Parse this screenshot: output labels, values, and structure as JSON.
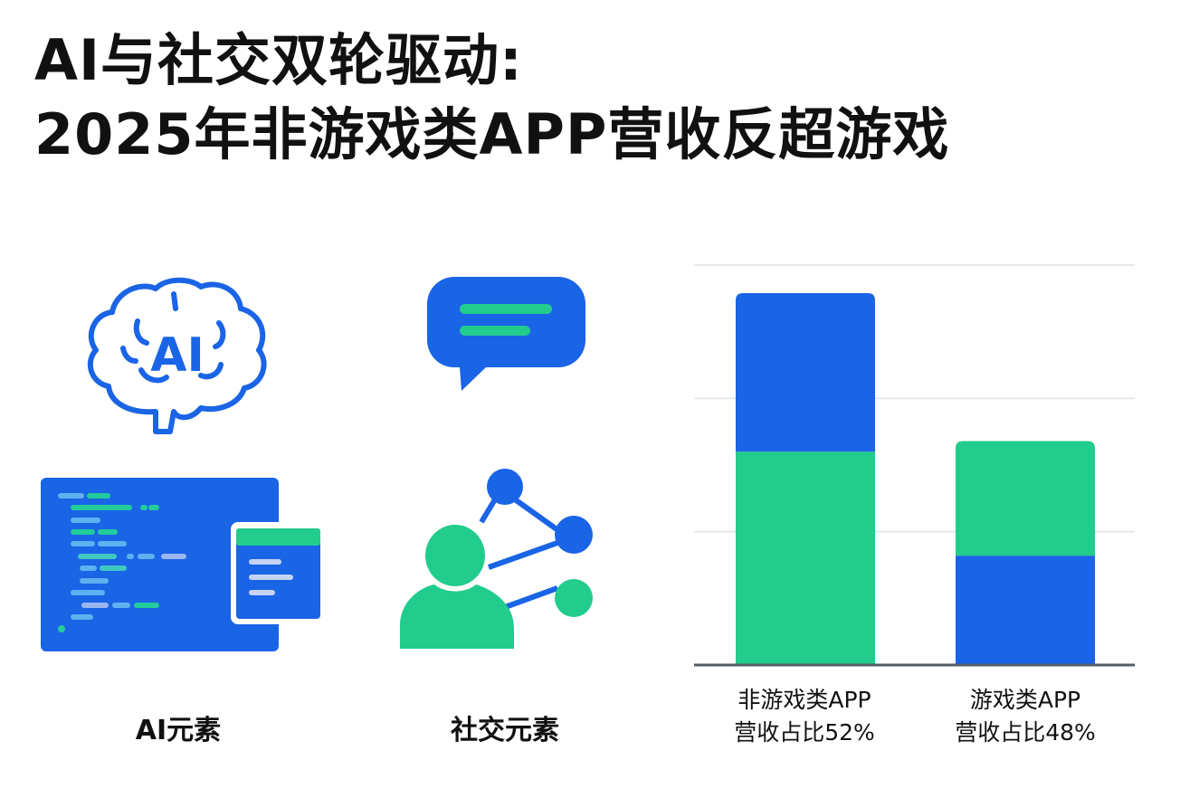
{
  "title_line1": "AI与社交双轮驱动:",
  "title_line2": "2025年非游戏类APP营收反超游戏",
  "icons": {
    "brain": {
      "name": "ai-brain-icon",
      "text": "AI"
    },
    "chat": {
      "name": "chat-bubble-icon"
    },
    "code": {
      "name": "code-window-icon"
    },
    "social": {
      "name": "social-network-icon"
    }
  },
  "captions": {
    "ai": "AI元素",
    "social": "社交元素"
  },
  "colors": {
    "blue": "#1a64e6",
    "green": "#22cc8c"
  },
  "chart_data": {
    "type": "bar",
    "stacked": true,
    "categories": [
      "非游戏类APP营收占比52%",
      "游戏类APP营收占比48%"
    ],
    "category_labels": [
      {
        "line1": "非游戏类APP",
        "line2": "营收占比52%"
      },
      {
        "line1": "游戏类APP",
        "line2": "营收占比48%"
      }
    ],
    "segments": [
      [
        {
          "color": "#22cc8c",
          "value": 1.6
        },
        {
          "color": "#1a64e6",
          "value": 1.19
        }
      ],
      [
        {
          "color": "#1a64e6",
          "value": 0.82
        },
        {
          "color": "#22cc8c",
          "value": 0.86
        }
      ]
    ],
    "ylim": [
      0,
      3
    ],
    "grid": true,
    "gridlines": [
      1,
      2,
      3
    ],
    "axis_ticks_shown": false,
    "legend": "none"
  }
}
